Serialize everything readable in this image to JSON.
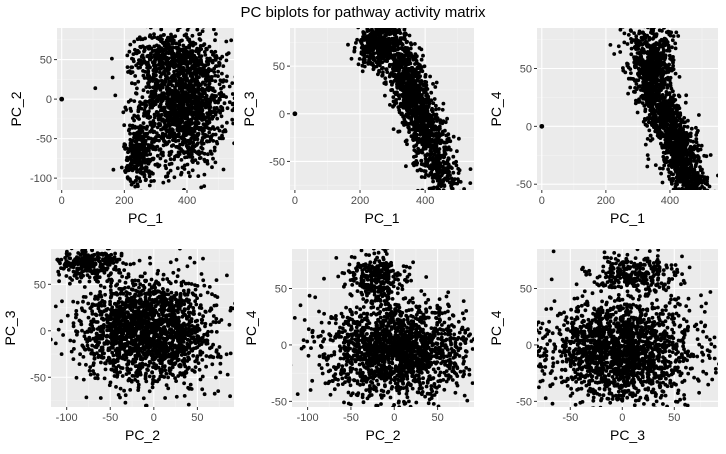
{
  "title": "PC biplots for pathway activity matrix",
  "colors": {
    "panel_bg": "#ebebeb",
    "grid_major": "#ffffff",
    "point": "#000000",
    "tick_text": "#4d4d4d"
  },
  "chart_data": [
    {
      "type": "scatter",
      "xlabel": "PC_1",
      "ylabel": "PC_2",
      "xlim": [
        -15,
        550
      ],
      "ylim": [
        -115,
        90
      ],
      "xticks": [
        0,
        200,
        400
      ],
      "yticks": [
        -100,
        -50,
        0,
        50
      ],
      "xtick_labels": [
        "0",
        "200",
        "400"
      ],
      "ytick_labels": [
        "-100",
        "-50",
        "0",
        "50"
      ],
      "grid": true,
      "outlier_points": [
        [
          0,
          0
        ]
      ],
      "clusters": [
        {
          "center": [
            390,
            -5
          ],
          "spread": [
            70,
            40
          ],
          "rotation_deg": 0,
          "n": 1500
        },
        {
          "center": [
            340,
            55
          ],
          "spread": [
            60,
            15
          ],
          "rotation_deg": 0,
          "n": 300
        },
        {
          "center": [
            250,
            -70
          ],
          "spread": [
            25,
            20
          ],
          "rotation_deg": 0,
          "n": 280
        }
      ]
    },
    {
      "type": "scatter",
      "xlabel": "PC_1",
      "ylabel": "PC_3",
      "xlim": [
        -15,
        550
      ],
      "ylim": [
        -80,
        90
      ],
      "xticks": [
        0,
        200,
        400
      ],
      "yticks": [
        -50,
        0,
        50
      ],
      "xtick_labels": [
        "0",
        "200",
        "400"
      ],
      "ytick_labels": [
        "-50",
        "0",
        "50"
      ],
      "grid": true,
      "outlier_points": [
        [
          0,
          0
        ]
      ],
      "clusters": [
        {
          "center": [
            370,
            10
          ],
          "spread": [
            95,
            20
          ],
          "rotation_deg": -40,
          "n": 1700
        },
        {
          "center": [
            240,
            70
          ],
          "spread": [
            25,
            10
          ],
          "rotation_deg": 0,
          "n": 250
        }
      ]
    },
    {
      "type": "scatter",
      "xlabel": "PC_1",
      "ylabel": "PC_4",
      "xlim": [
        -15,
        550
      ],
      "ylim": [
        -55,
        85
      ],
      "xticks": [
        0,
        200,
        400
      ],
      "yticks": [
        -50,
        0,
        50
      ],
      "xtick_labels": [
        "0",
        "200",
        "400"
      ],
      "ytick_labels": [
        "-50",
        "0",
        "50"
      ],
      "grid": true,
      "outlier_points": [
        [
          0,
          0
        ]
      ],
      "clusters": [
        {
          "center": [
            410,
            -10
          ],
          "spread": [
            80,
            18
          ],
          "rotation_deg": -32,
          "n": 1500
        },
        {
          "center": [
            355,
            55
          ],
          "spread": [
            30,
            15
          ],
          "rotation_deg": 0,
          "n": 350
        }
      ]
    },
    {
      "type": "scatter",
      "xlabel": "PC_2",
      "ylabel": "PC_3",
      "xlim": [
        -118,
        92
      ],
      "ylim": [
        -82,
        88
      ],
      "xticks": [
        -100,
        -50,
        0,
        50
      ],
      "yticks": [
        -50,
        0,
        50
      ],
      "xtick_labels": [
        "-100",
        "-50",
        "0",
        "50"
      ],
      "ytick_labels": [
        "-50",
        "0",
        "50"
      ],
      "grid": true,
      "outlier_points": [],
      "clusters": [
        {
          "center": [
            -5,
            0
          ],
          "spread": [
            38,
            28
          ],
          "rotation_deg": 0,
          "n": 1900
        },
        {
          "center": [
            -75,
            72
          ],
          "spread": [
            18,
            8
          ],
          "rotation_deg": 0,
          "n": 250
        }
      ]
    },
    {
      "type": "scatter",
      "xlabel": "PC_2",
      "ylabel": "PC_4",
      "xlim": [
        -118,
        92
      ],
      "ylim": [
        -55,
        85
      ],
      "xticks": [
        -100,
        -50,
        0,
        50
      ],
      "yticks": [
        -50,
        0,
        50
      ],
      "xtick_labels": [
        "-100",
        "-50",
        "0",
        "50"
      ],
      "ytick_labels": [
        "-50",
        "0",
        "50"
      ],
      "grid": true,
      "outlier_points": [],
      "clusters": [
        {
          "center": [
            5,
            -5
          ],
          "spread": [
            40,
            20
          ],
          "rotation_deg": 0,
          "n": 1800
        },
        {
          "center": [
            -20,
            60
          ],
          "spread": [
            15,
            12
          ],
          "rotation_deg": 0,
          "n": 280
        }
      ]
    },
    {
      "type": "scatter",
      "xlabel": "PC_3",
      "ylabel": "PC_4",
      "xlim": [
        -82,
        92
      ],
      "ylim": [
        -55,
        85
      ],
      "xticks": [
        -50,
        0,
        50
      ],
      "yticks": [
        -50,
        0,
        50
      ],
      "xtick_labels": [
        "-50",
        "0",
        "50"
      ],
      "ytick_labels": [
        "-50",
        "0",
        "50"
      ],
      "grid": true,
      "outlier_points": [],
      "clusters": [
        {
          "center": [
            0,
            -5
          ],
          "spread": [
            35,
            22
          ],
          "rotation_deg": 0,
          "n": 1800
        },
        {
          "center": [
            10,
            62
          ],
          "spread": [
            22,
            10
          ],
          "rotation_deg": 0,
          "n": 280
        }
      ]
    }
  ]
}
